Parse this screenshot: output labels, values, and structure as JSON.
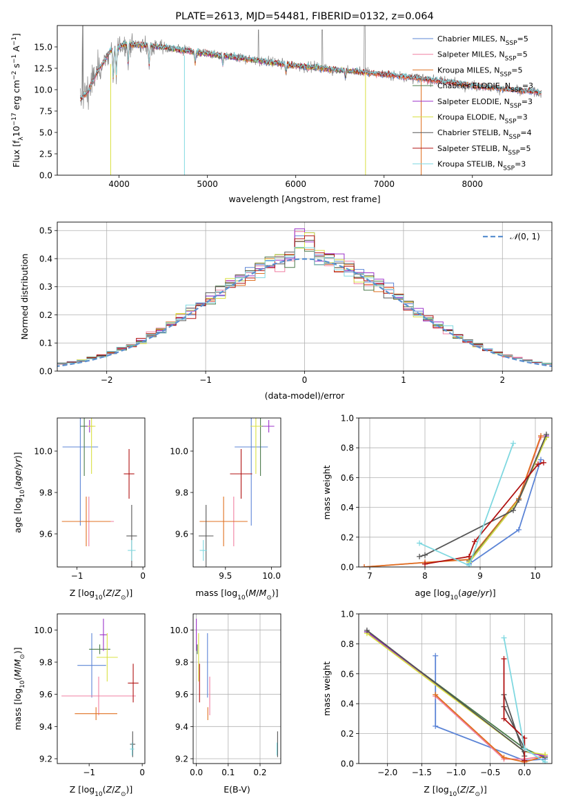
{
  "colors": {
    "chabrier_miles": "#5b84d6",
    "salpeter_miles": "#f07ea0",
    "kroupa_miles": "#e07020",
    "chabrier_elodie": "#4a7a4a",
    "salpeter_elodie": "#9b30c8",
    "kroupa_elodie": "#d8e040",
    "chabrier_stelib": "#555555",
    "salpeter_stelib": "#b01010",
    "kroupa_stelib": "#7fd8e0",
    "data_spectrum": "#7f7f7f",
    "normal_curve": "#5b90d0",
    "grid": "#b0b0b0"
  },
  "chart_data": [
    {
      "type": "line",
      "id": "spectrum",
      "title": "PLATE=2613, MJD=54481, FIBERID=0132, z=0.064",
      "xlabel": "wavelength [Angstrom, rest frame]",
      "ylabel": "Flux [f_λ 10^-17 erg cm^-2 s^-1 A^-1]",
      "xlim": [
        3300,
        8900
      ],
      "ylim": [
        0,
        17.5
      ],
      "xticks": [
        "4000",
        "5000",
        "6000",
        "7000",
        "8000"
      ],
      "yticks": [
        "0.0",
        "2.5",
        "5.0",
        "7.5",
        "10.0",
        "12.5",
        "15.0"
      ],
      "grid": false,
      "legend_position": "top-right",
      "legend": [
        {
          "key": "chabrier_miles",
          "label": "Chabrier MILES, N",
          "sub": "SSP",
          "suffix": "=5"
        },
        {
          "key": "salpeter_miles",
          "label": "Salpeter MILES, N",
          "sub": "SSP",
          "suffix": "=5"
        },
        {
          "key": "kroupa_miles",
          "label": "Kroupa MILES, N",
          "sub": "SSP",
          "suffix": "=5"
        },
        {
          "key": "chabrier_elodie",
          "label": "Chabrier ELODIE, N",
          "sub": "SSP",
          "suffix": "=3"
        },
        {
          "key": "salpeter_elodie",
          "label": "Salpeter ELODIE, N",
          "sub": "SSP",
          "suffix": "=3"
        },
        {
          "key": "kroupa_elodie",
          "label": "Kroupa ELODIE, N",
          "sub": "SSP",
          "suffix": "=3"
        },
        {
          "key": "chabrier_stelib",
          "label": "Chabrier STELIB, N",
          "sub": "SSP",
          "suffix": "=4"
        },
        {
          "key": "salpeter_stelib",
          "label": "Salpeter STELIB, N",
          "sub": "SSP",
          "suffix": "=5"
        },
        {
          "key": "kroupa_stelib",
          "label": "Kroupa STELIB, N",
          "sub": "SSP",
          "suffix": "=3"
        }
      ],
      "continuum_knots": [
        [
          3550,
          8.8
        ],
        [
          3650,
          9.8
        ],
        [
          3750,
          12.0
        ],
        [
          3900,
          14.5
        ],
        [
          4050,
          15.3
        ],
        [
          4300,
          15.2
        ],
        [
          4600,
          14.8
        ],
        [
          5000,
          14.2
        ],
        [
          5500,
          13.5
        ],
        [
          6000,
          12.8
        ],
        [
          6500,
          12.3
        ],
        [
          7000,
          11.8
        ],
        [
          7500,
          11.2
        ],
        [
          8000,
          10.5
        ],
        [
          8500,
          9.9
        ],
        [
          8780,
          9.7
        ]
      ]
    },
    {
      "type": "histogram",
      "id": "residuals",
      "xlabel": "(data-model)/error",
      "ylabel": "Normed distribution",
      "xlim": [
        -2.5,
        2.5
      ],
      "ylim": [
        0,
        0.53
      ],
      "xticks": [
        "−2",
        "−1",
        "0",
        "1",
        "2"
      ],
      "yticks": [
        "0.0",
        "0.1",
        "0.2",
        "0.3",
        "0.4",
        "0.5"
      ],
      "grid": true,
      "legend_position": "top-right",
      "legend_label": "N(0,1)",
      "bin_width": 0.1
    },
    {
      "type": "scatter",
      "id": "age_vs_Z",
      "xlabel": "Z [log10(Z/Z⊙)]",
      "ylabel": "age [log10(age/yr)]",
      "xlim": [
        -1.3,
        0.03
      ],
      "ylim": [
        9.44,
        10.16
      ],
      "xticks": [
        "−1",
        "0"
      ],
      "yticks": [
        "9.6",
        "9.8",
        "10.0"
      ],
      "grid": false,
      "points": [
        {
          "key": "chabrier_miles",
          "x": -0.95,
          "xerr": 0.27,
          "y": 10.02,
          "yerr": 0.38
        },
        {
          "key": "salpeter_miles",
          "x": -0.82,
          "xerr": 0.38,
          "y": 9.66,
          "yerr": 0.12
        },
        {
          "key": "kroupa_miles",
          "x": -0.86,
          "xerr": 0.37,
          "y": 9.66,
          "yerr": 0.12
        },
        {
          "key": "chabrier_elodie",
          "x": -0.89,
          "xerr": 0.06,
          "y": 10.12,
          "yerr": 0.24
        },
        {
          "key": "salpeter_elodie",
          "x": -0.81,
          "xerr": 0.06,
          "y": 10.12,
          "yerr": 0.03
        },
        {
          "key": "kroupa_elodie",
          "x": -0.78,
          "xerr": 0.06,
          "y": 10.12,
          "yerr": 0.23
        },
        {
          "key": "chabrier_stelib",
          "x": -0.17,
          "xerr": 0.08,
          "y": 9.59,
          "yerr": 0.15
        },
        {
          "key": "salpeter_stelib",
          "x": -0.21,
          "xerr": 0.08,
          "y": 9.89,
          "yerr": 0.12
        },
        {
          "key": "kroupa_stelib",
          "x": -0.17,
          "xerr": 0.06,
          "y": 9.52,
          "yerr": 0.05
        }
      ]
    },
    {
      "type": "scatter",
      "id": "age_vs_mass",
      "xlabel": "mass [log10(M/M⊙)]",
      "ylabel": "",
      "xlim": [
        9.15,
        10.1
      ],
      "ylim": [
        9.44,
        10.16
      ],
      "xticks": [
        "9.5",
        "10.0"
      ],
      "yticks": [
        "9.6",
        "9.8",
        "10.0"
      ],
      "grid": false,
      "points": [
        {
          "key": "chabrier_miles",
          "x": 9.78,
          "xerr": 0.18,
          "y": 10.02,
          "yerr": 0.38
        },
        {
          "key": "salpeter_miles",
          "x": 9.59,
          "xerr": 0.12,
          "y": 9.66,
          "yerr": 0.12
        },
        {
          "key": "kroupa_miles",
          "x": 9.48,
          "xerr": 0.26,
          "y": 9.66,
          "yerr": 0.12
        },
        {
          "key": "chabrier_elodie",
          "x": 9.88,
          "xerr": 0.06,
          "y": 10.12,
          "yerr": 0.24
        },
        {
          "key": "salpeter_elodie",
          "x": 9.97,
          "xerr": 0.06,
          "y": 10.12,
          "yerr": 0.03
        },
        {
          "key": "kroupa_elodie",
          "x": 9.83,
          "xerr": 0.06,
          "y": 10.12,
          "yerr": 0.23
        },
        {
          "key": "chabrier_stelib",
          "x": 9.29,
          "xerr": 0.08,
          "y": 9.59,
          "yerr": 0.15
        },
        {
          "key": "salpeter_stelib",
          "x": 9.67,
          "xerr": 0.12,
          "y": 9.89,
          "yerr": 0.12
        },
        {
          "key": "kroupa_stelib",
          "x": 9.26,
          "xerr": 0.04,
          "y": 9.52,
          "yerr": 0.05
        }
      ]
    },
    {
      "type": "line",
      "id": "massweight_vs_age",
      "xlabel": "age [log10(age/yr)]",
      "ylabel": "mass weight",
      "xlim": [
        6.8,
        10.3
      ],
      "ylim": [
        0,
        1
      ],
      "xticks": [
        "7",
        "8",
        "9",
        "10"
      ],
      "yticks": [
        "0.0",
        "0.2",
        "0.4",
        "0.6",
        "0.8",
        "1.0"
      ],
      "grid": true,
      "series": [
        {
          "key": "chabrier_miles",
          "x": [
            8.8,
            9.7,
            10.1
          ],
          "y": [
            0.02,
            0.25,
            0.72
          ]
        },
        {
          "key": "salpeter_miles",
          "x": [
            6.9,
            8.0,
            8.8,
            9.7,
            10.1
          ],
          "y": [
            0.0,
            0.03,
            0.05,
            0.45,
            0.87
          ]
        },
        {
          "key": "kroupa_miles",
          "x": [
            6.9,
            8.0,
            8.8,
            9.7,
            10.1
          ],
          "y": [
            0.0,
            0.03,
            0.05,
            0.46,
            0.88
          ]
        },
        {
          "key": "chabrier_elodie",
          "x": [
            8.8,
            9.7,
            10.2
          ],
          "y": [
            0.04,
            0.45,
            0.87
          ]
        },
        {
          "key": "salpeter_elodie",
          "x": [
            8.8,
            9.7,
            10.2
          ],
          "y": [
            0.03,
            0.45,
            0.88
          ]
        },
        {
          "key": "kroupa_elodie",
          "x": [
            8.8,
            9.7,
            10.2
          ],
          "y": [
            0.03,
            0.45,
            0.87
          ]
        },
        {
          "key": "chabrier_stelib",
          "x": [
            7.9,
            8.0,
            9.6,
            9.7,
            10.2
          ],
          "y": [
            0.07,
            0.08,
            0.38,
            0.45,
            0.89
          ]
        },
        {
          "key": "salpeter_stelib",
          "x": [
            8.0,
            8.8,
            8.9,
            10.05,
            10.15
          ],
          "y": [
            0.02,
            0.07,
            0.17,
            0.69,
            0.7
          ]
        },
        {
          "key": "kroupa_stelib",
          "x": [
            7.9,
            8.8,
            9.6
          ],
          "y": [
            0.16,
            0.01,
            0.83
          ]
        }
      ]
    },
    {
      "type": "scatter",
      "id": "mass_vs_Z",
      "xlabel": "Z [log10(Z/Z⊙)]",
      "ylabel": "mass [log10(M/M⊙)]",
      "xlim": [
        -1.6,
        0.05
      ],
      "ylim": [
        9.17,
        10.1
      ],
      "xticks": [
        "−1",
        "0"
      ],
      "yticks": [
        "9.2",
        "9.4",
        "9.6",
        "9.8",
        "10.0"
      ],
      "grid": false,
      "points": [
        {
          "key": "chabrier_miles",
          "x": -0.95,
          "xerr": 0.27,
          "y": 9.78,
          "yerr": 0.2
        },
        {
          "key": "salpeter_miles",
          "x": -0.82,
          "xerr": 0.7,
          "y": 9.59,
          "yerr": 0.12
        },
        {
          "key": "kroupa_miles",
          "x": -0.87,
          "xerr": 0.4,
          "y": 9.48,
          "yerr": 0.04
        },
        {
          "key": "chabrier_elodie",
          "x": -0.8,
          "xerr": 0.2,
          "y": 9.88,
          "yerr": 0.03
        },
        {
          "key": "salpeter_elodie",
          "x": -0.73,
          "xerr": 0.07,
          "y": 9.97,
          "yerr": 0.1
        },
        {
          "key": "kroupa_elodie",
          "x": -0.66,
          "xerr": 0.2,
          "y": 9.83,
          "yerr": 0.15
        },
        {
          "key": "chabrier_stelib",
          "x": -0.18,
          "xerr": 0.05,
          "y": 9.29,
          "yerr": 0.08
        },
        {
          "key": "salpeter_stelib",
          "x": -0.17,
          "xerr": 0.1,
          "y": 9.67,
          "yerr": 0.12
        },
        {
          "key": "kroupa_stelib",
          "x": -0.19,
          "xerr": 0.04,
          "y": 9.26,
          "yerr": 0.04
        }
      ]
    },
    {
      "type": "scatter",
      "id": "mass_vs_ebv",
      "xlabel": "E(B-V)",
      "ylabel": "",
      "xlim": [
        -0.01,
        0.265
      ],
      "ylim": [
        9.17,
        10.1
      ],
      "xticks": [
        "0.0",
        "0.1",
        "0.2"
      ],
      "yticks": [
        "9.2",
        "9.4",
        "9.6",
        "9.8",
        "10.0"
      ],
      "grid": true,
      "points": [
        {
          "key": "chabrier_miles",
          "x": 0.035,
          "y": 9.78,
          "yerr": 0.2
        },
        {
          "key": "salpeter_miles",
          "x": 0.042,
          "y": 9.59,
          "yerr": 0.12
        },
        {
          "key": "kroupa_miles",
          "x": 0.036,
          "y": 9.48,
          "yerr": 0.04
        },
        {
          "key": "chabrier_elodie",
          "x": 0.003,
          "y": 9.88,
          "yerr": 0.03
        },
        {
          "key": "salpeter_elodie",
          "x": 0.0,
          "y": 9.97,
          "yerr": 0.1
        },
        {
          "key": "kroupa_elodie",
          "x": 0.007,
          "y": 9.83,
          "yerr": 0.15
        },
        {
          "key": "chabrier_stelib",
          "x": 0.255,
          "y": 9.29,
          "yerr": 0.08
        },
        {
          "key": "salpeter_stelib",
          "x": 0.01,
          "y": 9.67,
          "yerr": 0.12
        },
        {
          "key": "kroupa_stelib",
          "x": 0.253,
          "y": 9.26,
          "yerr": 0.04
        }
      ]
    },
    {
      "type": "line",
      "id": "massweight_vs_Z",
      "xlabel": "Z [log10(Z/Z⊙)]",
      "ylabel": "mass weight",
      "xlim": [
        -2.42,
        0.4
      ],
      "ylim": [
        0,
        1
      ],
      "xticks": [
        "−2.0",
        "−1.5",
        "−1.0",
        "−0.5",
        "0.0"
      ],
      "yticks": [
        "0.0",
        "0.2",
        "0.4",
        "0.6",
        "0.8",
        "1.0"
      ],
      "grid": true,
      "series": [
        {
          "key": "chabrier_miles",
          "x": [
            -1.3,
            -1.3,
            0.0,
            0.3
          ],
          "y": [
            0.72,
            0.25,
            0.02,
            0.03
          ]
        },
        {
          "key": "salpeter_miles",
          "x": [
            -1.3,
            -0.3,
            0.0,
            0.3
          ],
          "y": [
            0.45,
            0.03,
            0.03,
            0.05
          ]
        },
        {
          "key": "kroupa_miles",
          "x": [
            -1.3,
            -0.3,
            0.0,
            0.3
          ],
          "y": [
            0.46,
            0.04,
            0.01,
            0.05
          ]
        },
        {
          "key": "chabrier_elodie",
          "x": [
            -2.3,
            0.0,
            0.3
          ],
          "y": [
            0.88,
            0.1,
            0.04
          ]
        },
        {
          "key": "salpeter_elodie",
          "x": [
            -2.3,
            0.0,
            0.3
          ],
          "y": [
            0.88,
            0.08,
            0.05
          ]
        },
        {
          "key": "kroupa_elodie",
          "x": [
            -2.3,
            0.0,
            0.3
          ],
          "y": [
            0.87,
            0.08,
            0.06
          ]
        },
        {
          "key": "chabrier_stelib",
          "x": [
            -2.3,
            0.0,
            0.0,
            -0.3,
            -0.3,
            0.0
          ],
          "y": [
            0.89,
            0.08,
            0.1,
            0.38,
            0.46,
            0.05
          ]
        },
        {
          "key": "salpeter_stelib",
          "x": [
            -0.3,
            -0.3,
            0.0,
            0.0
          ],
          "y": [
            0.7,
            0.3,
            0.17,
            0.02
          ]
        },
        {
          "key": "kroupa_stelib",
          "x": [
            -0.3,
            0.0,
            0.3
          ],
          "y": [
            0.84,
            0.1,
            0.01
          ]
        }
      ]
    }
  ]
}
